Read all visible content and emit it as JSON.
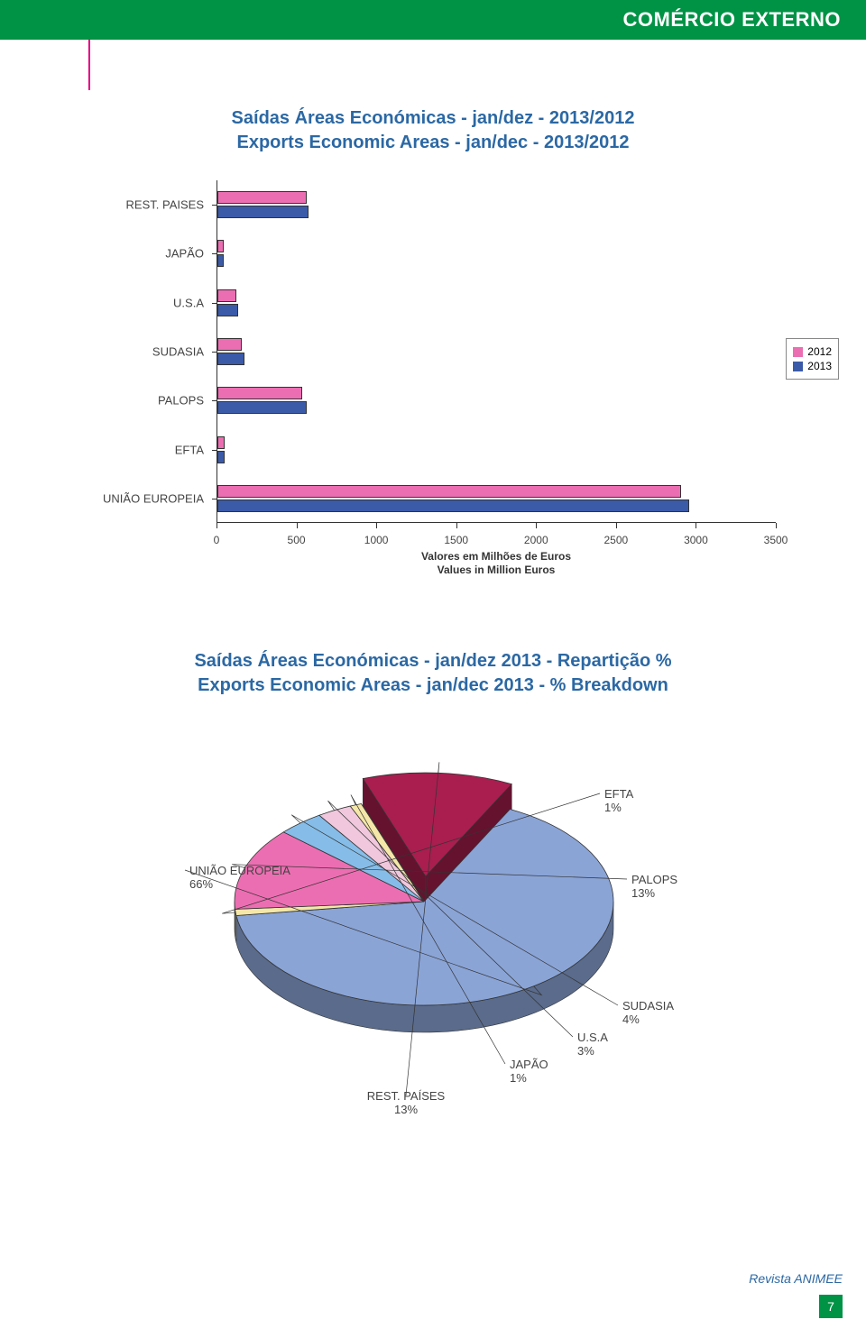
{
  "header": {
    "title": "COMÉRCIO EXTERNO"
  },
  "bar_chart": {
    "title_line1": "Saídas Áreas Económicas - jan/dez - 2013/2012",
    "title_line2": "Exports Economic Areas - jan/dec - 2013/2012",
    "type": "bar",
    "categories": [
      "REST. PAISES",
      "JAPÃO",
      "U.S.A",
      "SUDASIA",
      "PALOPS",
      "EFTA",
      "UNIÃO EUROPEIA"
    ],
    "series": [
      {
        "name": "2012",
        "color": "#ec6eb2",
        "values": [
          560,
          40,
          120,
          150,
          530,
          45,
          2900
        ]
      },
      {
        "name": "2013",
        "color": "#3b5ba9",
        "values": [
          570,
          40,
          130,
          170,
          560,
          45,
          2950
        ]
      }
    ],
    "xlim": [
      0,
      3500
    ],
    "xtick_step": 500,
    "xticks": [
      0,
      500,
      1000,
      1500,
      2000,
      2500,
      3000,
      3500
    ],
    "xaxis_caption_line1": "Valores em Milhões de Euros",
    "xaxis_caption_line2": "Values in Million Euros",
    "label_color": "#444",
    "label_fontsize": 13,
    "background_color": "#ffffff",
    "legend_border": "#888888"
  },
  "pie_chart": {
    "title_line1": "Saídas Áreas Económicas - jan/dez 2013 - Repartição %",
    "title_line2": "Exports Economic Areas - jan/dec 2013 - % Breakdown",
    "type": "pie",
    "slices": [
      {
        "label": "UNIÃO EUROPEIA",
        "value": 66,
        "color": "#8aa4d6"
      },
      {
        "label": "EFTA",
        "value": 1,
        "color": "#f4e7a8"
      },
      {
        "label": "PALOPS",
        "value": 13,
        "color": "#ec6eb2"
      },
      {
        "label": "SUDASIA",
        "value": 4,
        "color": "#86bde8"
      },
      {
        "label": "U.S.A",
        "value": 3,
        "color": "#f0c7dd"
      },
      {
        "label": "JAPÃO",
        "value": 1,
        "color": "#f4e7a8"
      },
      {
        "label": "REST. PAÍSES",
        "value": 13,
        "color": "#a91e4f"
      }
    ],
    "pull_slice_index": 6,
    "outline_color": "#333333",
    "label_fontsize": 13
  },
  "footer": {
    "text": "Revista ANIMEE",
    "page": "7"
  },
  "colors": {
    "header_green": "#009245",
    "accent_pink": "#e6007e",
    "title_blue": "#2b68a4"
  }
}
